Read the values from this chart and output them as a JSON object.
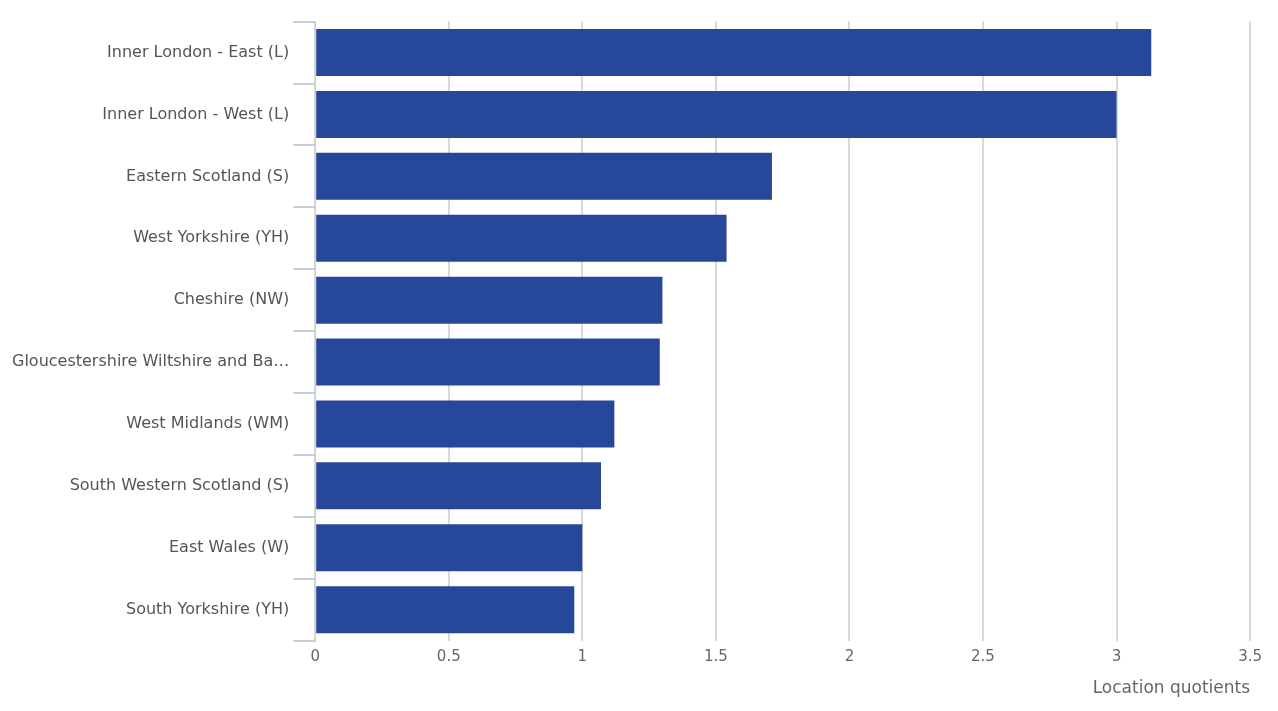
{
  "chart_data": {
    "type": "bar",
    "orientation": "horizontal",
    "xlabel": "Location quotients",
    "categories": [
      "Inner London - East (L)",
      "Inner London - West (L)",
      "Eastern Scotland (S)",
      "West Yorkshire (YH)",
      "Cheshire (NW)",
      "Gloucestershire Wiltshire and Ba…",
      "West Midlands (WM)",
      "South Western Scotland (S)",
      "East Wales (W)",
      "South Yorkshire (YH)"
    ],
    "values": [
      3.13,
      3.0,
      1.71,
      1.54,
      1.3,
      1.29,
      1.12,
      1.07,
      1.0,
      0.97
    ],
    "color": "#27479a",
    "xlim": [
      0,
      3.5
    ],
    "xticks": [
      0,
      0.5,
      1,
      1.5,
      2,
      2.5,
      3,
      3.5
    ],
    "grid": "x",
    "legend": false
  }
}
